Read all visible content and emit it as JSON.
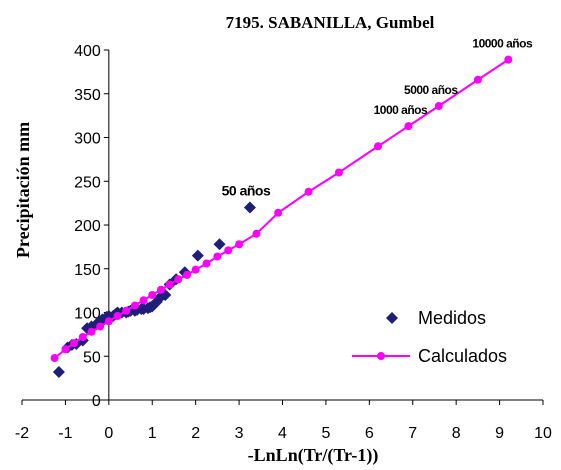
{
  "chart_data": {
    "type": "scatter",
    "title": "7195. SABANILLA, Gumbel",
    "xlabel": "-LnLn(Tr/(Tr-1))",
    "ylabel": "Precipitación mm",
    "xlim": [
      -2,
      10
    ],
    "ylim": [
      0,
      400
    ],
    "x_ticks": [
      -2,
      -1,
      0,
      1,
      2,
      3,
      4,
      5,
      6,
      7,
      8,
      9,
      10
    ],
    "y_ticks": [
      0,
      50,
      100,
      150,
      200,
      250,
      300,
      350,
      400
    ],
    "legend": {
      "placement": "right"
    },
    "series": [
      {
        "name": "Medidos",
        "marker": "diamond",
        "color": "#1f1f7a",
        "x": [
          -1.15,
          -0.95,
          -0.85,
          -0.75,
          -0.6,
          -0.5,
          -0.4,
          -0.3,
          -0.25,
          -0.15,
          -0.05,
          0.0,
          0.1,
          0.15,
          0.2,
          0.3,
          0.4,
          0.45,
          0.5,
          0.6,
          0.65,
          0.75,
          0.8,
          0.9,
          0.95,
          1.0,
          1.1,
          1.2,
          1.3,
          1.4,
          1.55,
          1.75,
          2.05,
          2.55,
          3.25
        ],
        "y": [
          32,
          60,
          63,
          64,
          68,
          82,
          84,
          86,
          88,
          92,
          95,
          96,
          96,
          98,
          100,
          100,
          100,
          101,
          102,
          102,
          103,
          104,
          104,
          105,
          106,
          107,
          112,
          118,
          120,
          132,
          138,
          146,
          165,
          178,
          220
        ]
      },
      {
        "name": "Calculados",
        "marker": "circle",
        "color": "#ff00ff",
        "x": [
          -1.25,
          -1.0,
          -0.8,
          -0.6,
          -0.4,
          -0.2,
          0.0,
          0.2,
          0.4,
          0.6,
          0.8,
          1.0,
          1.2,
          1.4,
          1.6,
          1.8,
          2.0,
          2.25,
          2.5,
          2.75,
          3.0,
          3.4,
          3.9,
          4.6,
          5.3,
          6.2,
          6.9,
          7.6,
          8.5,
          9.2
        ],
        "y": [
          48,
          58,
          65,
          72,
          78,
          84,
          90,
          96,
          102,
          108,
          114,
          120,
          126,
          132,
          138,
          143,
          149,
          156,
          164,
          171,
          178,
          190,
          214,
          238,
          260,
          290,
          313,
          336,
          366,
          389
        ]
      }
    ],
    "annotations": [
      {
        "text": "50 años",
        "x": 3.25,
        "y": 220
      },
      {
        "text": "1000 años",
        "x": 6.9,
        "y": 313
      },
      {
        "text": "5000 años",
        "x": 7.6,
        "y": 336
      },
      {
        "text": "10000 años",
        "x": 9.2,
        "y": 389
      }
    ]
  }
}
